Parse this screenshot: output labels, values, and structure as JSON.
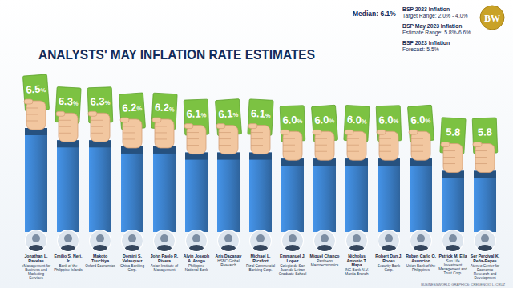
{
  "chart_data": {
    "type": "bar",
    "title": "ANALYSTS' MAY INFLATION RATE ESTIMATES",
    "median": "Median: 6.1%",
    "annotations": [
      [
        "BSP 2023 Inflation",
        "Target Range: 2.0% - 4.0%"
      ],
      [
        "BSP May 2023 Inflation",
        "Estimate Range: 5.8%-6.6%"
      ],
      [
        "BSP 2023 Inflation",
        "Forecast: 5.5%"
      ]
    ],
    "logo": "BW",
    "credit": "BUSINESSWORLD GRAPHICS: CREDENCIO L. CRUZ",
    "categories": [
      "Jonathan L. Ravelas",
      "Emilio S. Neri, Jr.",
      "Makoto Tsuchiya",
      "Domini S. Velasquez",
      "John Paolo R. Rivera",
      "Alvin Joseph A. Arogo",
      "Aris Dacanay",
      "Michael L. Ricafort",
      "Emmanuel J. Lopez",
      "Miguel Chanco",
      "Nicholas Antonio T. Mapa",
      "Robert Dan J. Roces",
      "Ruben Carlo O. Asuncion",
      "Patrick M. Ella",
      "Ser Percival K. Peña-Reyes"
    ],
    "institutions": [
      "eManagement for Business and Marketing Services",
      "Bank of the Philippine Islands",
      "Oxford Economics",
      "China Banking Corp.",
      "Asian Institute of Management",
      "Philippine National Bank",
      "HSBC Global Research",
      "Rizal Commercial Banking Corp.",
      "Colegio de San Juan de Letran Graduate School",
      "Pantheon Macroeconomics",
      "ING Bank N.V. Manila Branch",
      "Security Bank Corp.",
      "Union Bank of the Philippines",
      "Sun Life Investment Management and Trust Corp.",
      "Ateneo Center for Economic Research and Development"
    ],
    "values": [
      6.5,
      6.3,
      6.3,
      6.2,
      6.2,
      6.1,
      6.1,
      6.1,
      6.0,
      6.0,
      6.0,
      6.0,
      6.0,
      5.8,
      5.8
    ],
    "value_labels": [
      "6.5%",
      "6.3%",
      "6.3%",
      "6.2%",
      "6.2%",
      "6.1%",
      "6.1%",
      "6.1%",
      "6.0%",
      "6.0%",
      "6.0%",
      "6.0%",
      "6.0%",
      "5.8",
      "5.8"
    ],
    "color": "#3a7cc3",
    "ylim": [
      4.8,
      6.5
    ],
    "yticks": [],
    "tick_labels": "x",
    "data_labels": true,
    "grid": false
  }
}
